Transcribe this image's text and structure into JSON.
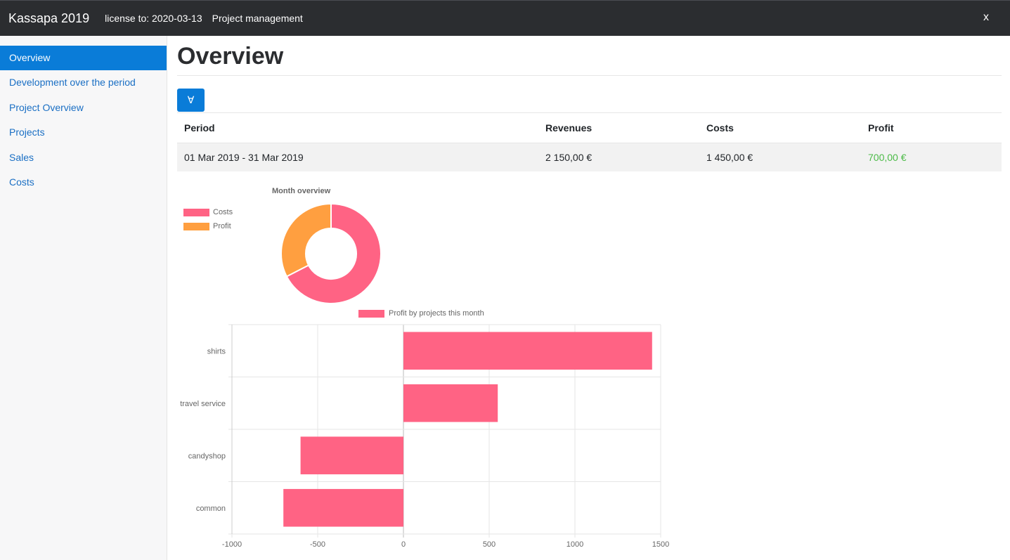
{
  "titlebar": {
    "app_name": "Kassapa 2019",
    "license": "license to: 2020-03-13",
    "module": "Project management",
    "close": "x"
  },
  "sidebar": {
    "items": [
      {
        "label": "Overview",
        "active": true
      },
      {
        "label": "Development over the period"
      },
      {
        "label": "Project Overview"
      },
      {
        "label": "Projects"
      },
      {
        "label": "Sales"
      },
      {
        "label": "Costs"
      }
    ]
  },
  "page": {
    "title": "Overview",
    "toggle_icon": "∀"
  },
  "table": {
    "headers": {
      "period": "Period",
      "revenues": "Revenues",
      "costs": "Costs",
      "profit": "Profit"
    },
    "row": {
      "period": "01 Mar 2019 - 31 Mar 2019",
      "revenues": "2 150,00 €",
      "costs": "1 450,00 €",
      "profit": "700,00 €"
    }
  },
  "colors": {
    "accent": "#0a7cd8",
    "profit_text": "#4cbb48",
    "costs": "#ff6384",
    "profit": "#ff9f40"
  },
  "chart_data": [
    {
      "type": "pie",
      "title": "Month overview",
      "labels": [
        "Costs",
        "Profit"
      ],
      "values": [
        1450,
        700
      ],
      "colors": [
        "#ff6384",
        "#ff9f40"
      ],
      "legend": "top-left"
    },
    {
      "type": "bar",
      "orientation": "horizontal",
      "categories": [
        "shirts",
        "travel service",
        "candyshop",
        "common"
      ],
      "series": [
        {
          "name": "Profit by projects this month",
          "values": [
            1450,
            550,
            -600,
            -700
          ],
          "color": "#ff6384"
        }
      ],
      "xlim": [
        -1000,
        1500
      ],
      "xticks": [
        -1000,
        -500,
        0,
        500,
        1000,
        1500
      ],
      "grid": true,
      "legend": "top"
    }
  ]
}
